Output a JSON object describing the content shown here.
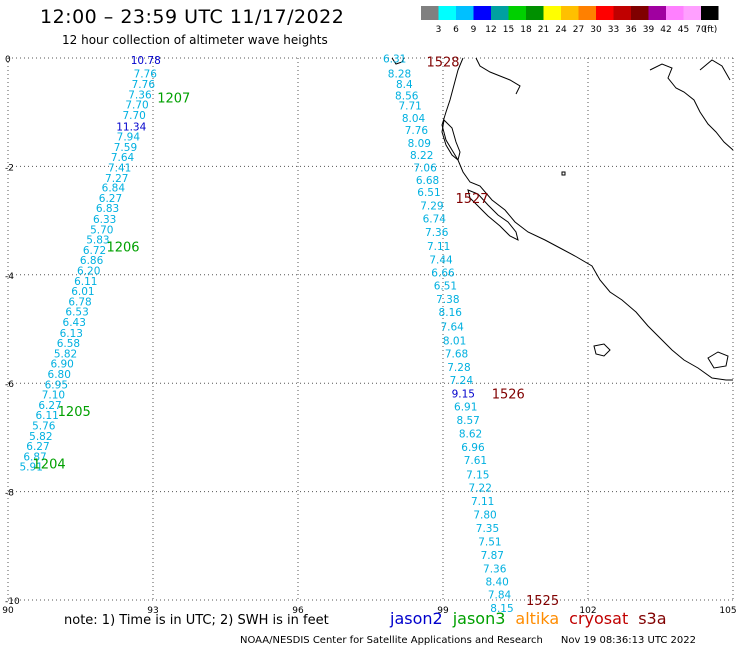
{
  "title": "12:00 – 23:59 UTC 11/17/2022",
  "subtitle": "12 hour collection of altimeter wave heights",
  "colorbar": {
    "unit": "(ft)",
    "colors": [
      "#808080",
      "#00ffff",
      "#00c0ff",
      "#0000ff",
      "#00a0a0",
      "#00d000",
      "#009000",
      "#ffff00",
      "#ffc000",
      "#ff8000",
      "#ff0000",
      "#c00000",
      "#800000",
      "#a000a0",
      "#ff80ff",
      "#ffa0ff",
      "#000000"
    ],
    "labels": [
      "3",
      "6",
      "9",
      "12",
      "15",
      "18",
      "21",
      "24",
      "27",
      "30",
      "33",
      "36",
      "39",
      "42",
      "45",
      "70"
    ]
  },
  "chart_data": {
    "type": "scatter",
    "title": "12:00 – 23:59 UTC 11/17/2022",
    "subtitle": "12 hour collection of altimeter wave heights",
    "xlim": [
      90,
      105
    ],
    "ylim": [
      -10,
      0
    ],
    "x_ticks": [
      "90",
      "93",
      "96",
      "99",
      "102",
      "105"
    ],
    "y_ticks": [
      "0",
      "-2",
      "-4",
      "-6",
      "-8",
      "-10"
    ],
    "grid": true,
    "tracks": [
      {
        "satellite": "jason3",
        "color": "#00a000",
        "points": [
          {
            "x": 92.85,
            "y": -0.04,
            "v": "10.78",
            "c": "#0000cc"
          },
          {
            "x": 92.84,
            "y": -0.29,
            "v": "7.76"
          },
          {
            "x": 92.8,
            "y": -0.48,
            "v": "7.76"
          },
          {
            "x": 92.73,
            "y": -0.67,
            "v": "7.36"
          },
          {
            "x": 92.67,
            "y": -0.86,
            "v": "7.70"
          },
          {
            "x": 92.61,
            "y": -1.05,
            "v": "7.70"
          },
          {
            "x": 92.55,
            "y": -1.26,
            "v": "11.34",
            "c": "#0000cc"
          },
          {
            "x": 92.49,
            "y": -1.45,
            "v": "7.94"
          },
          {
            "x": 92.43,
            "y": -1.64,
            "v": "7.59"
          },
          {
            "x": 92.37,
            "y": -1.83,
            "v": "7.64"
          },
          {
            "x": 92.31,
            "y": -2.02,
            "v": "7.41"
          },
          {
            "x": 92.25,
            "y": -2.21,
            "v": "7.27"
          },
          {
            "x": 92.18,
            "y": -2.39,
            "v": "6.84"
          },
          {
            "x": 92.12,
            "y": -2.58,
            "v": "6.27"
          },
          {
            "x": 92.06,
            "y": -2.77,
            "v": "6.83"
          },
          {
            "x": 92.0,
            "y": -2.97,
            "v": "6.33"
          },
          {
            "x": 91.94,
            "y": -3.16,
            "v": "5.70"
          },
          {
            "x": 91.86,
            "y": -3.35,
            "v": "5.83"
          },
          {
            "x": 91.79,
            "y": -3.54,
            "v": "6.72"
          },
          {
            "x": 91.73,
            "y": -3.73,
            "v": "6.86"
          },
          {
            "x": 91.67,
            "y": -3.92,
            "v": "6.20"
          },
          {
            "x": 91.61,
            "y": -4.11,
            "v": "6.11"
          },
          {
            "x": 91.55,
            "y": -4.3,
            "v": "6.01"
          },
          {
            "x": 91.49,
            "y": -4.49,
            "v": "6.78"
          },
          {
            "x": 91.43,
            "y": -4.68,
            "v": "6.53"
          },
          {
            "x": 91.37,
            "y": -4.87,
            "v": "6.43"
          },
          {
            "x": 91.31,
            "y": -5.07,
            "v": "6.13"
          },
          {
            "x": 91.25,
            "y": -5.26,
            "v": "6.58"
          },
          {
            "x": 91.19,
            "y": -5.45,
            "v": "5.82"
          },
          {
            "x": 91.12,
            "y": -5.64,
            "v": "6.90"
          },
          {
            "x": 91.06,
            "y": -5.83,
            "v": "6.80"
          },
          {
            "x": 91.0,
            "y": -6.02,
            "v": "6.95"
          },
          {
            "x": 90.94,
            "y": -6.21,
            "v": "7.10"
          },
          {
            "x": 90.87,
            "y": -6.4,
            "v": "6.27"
          },
          {
            "x": 90.81,
            "y": -6.59,
            "v": "6.11"
          },
          {
            "x": 90.74,
            "y": -6.78,
            "v": "5.76"
          },
          {
            "x": 90.68,
            "y": -6.97,
            "v": "5.82"
          },
          {
            "x": 90.62,
            "y": -7.16,
            "v": "6.27"
          },
          {
            "x": 90.56,
            "y": -7.35,
            "v": "6.87"
          },
          {
            "x": 90.48,
            "y": -7.54,
            "v": "5.91"
          }
        ],
        "time_labels": [
          {
            "t": "1207",
            "x": 93.43,
            "y": -0.73
          },
          {
            "t": "1206",
            "x": 92.38,
            "y": -3.48
          },
          {
            "t": "1205",
            "x": 91.37,
            "y": -6.51
          },
          {
            "t": "1204",
            "x": 90.85,
            "y": -7.48
          }
        ]
      },
      {
        "satellite": "cryosat",
        "color": "#800000",
        "points": [
          {
            "x": 98.0,
            "y": -0.01,
            "v": "6.31"
          },
          {
            "x": 98.1,
            "y": -0.29,
            "v": "8.28"
          },
          {
            "x": 98.2,
            "y": -0.48,
            "v": "8.4"
          },
          {
            "x": 98.25,
            "y": -0.69,
            "v": "8.56"
          },
          {
            "x": 98.32,
            "y": -0.88,
            "v": "7.71"
          },
          {
            "x": 98.39,
            "y": -1.11,
            "v": "8.04"
          },
          {
            "x": 98.45,
            "y": -1.33,
            "v": "7.76"
          },
          {
            "x": 98.51,
            "y": -1.57,
            "v": "8.09"
          },
          {
            "x": 98.56,
            "y": -1.79,
            "v": "8.22"
          },
          {
            "x": 98.63,
            "y": -2.02,
            "v": "7.06"
          },
          {
            "x": 98.68,
            "y": -2.25,
            "v": "6.68"
          },
          {
            "x": 98.71,
            "y": -2.47,
            "v": "6.51"
          },
          {
            "x": 98.77,
            "y": -2.72,
            "v": "7.29"
          },
          {
            "x": 98.82,
            "y": -2.96,
            "v": "6.74"
          },
          {
            "x": 98.87,
            "y": -3.21,
            "v": "7.36"
          },
          {
            "x": 98.91,
            "y": -3.47,
            "v": "7.11"
          },
          {
            "x": 98.96,
            "y": -3.72,
            "v": "7.44"
          },
          {
            "x": 99.0,
            "y": -3.96,
            "v": "6.66"
          },
          {
            "x": 99.05,
            "y": -4.2,
            "v": "6.51"
          },
          {
            "x": 99.1,
            "y": -4.45,
            "v": "7.38"
          },
          {
            "x": 99.15,
            "y": -4.69,
            "v": "8.16"
          },
          {
            "x": 99.19,
            "y": -4.95,
            "v": "7.64"
          },
          {
            "x": 99.24,
            "y": -5.21,
            "v": "8.01"
          },
          {
            "x": 99.28,
            "y": -5.45,
            "v": "7.68"
          },
          {
            "x": 99.33,
            "y": -5.7,
            "v": "7.28"
          },
          {
            "x": 99.38,
            "y": -5.94,
            "v": "7.24"
          },
          {
            "x": 99.42,
            "y": -6.19,
            "v": "9.15",
            "c": "#0000cc"
          },
          {
            "x": 99.47,
            "y": -6.43,
            "v": "6.91"
          },
          {
            "x": 99.52,
            "y": -6.68,
            "v": "8.57"
          },
          {
            "x": 99.57,
            "y": -6.93,
            "v": "8.62"
          },
          {
            "x": 99.62,
            "y": -7.18,
            "v": "6.96"
          },
          {
            "x": 99.67,
            "y": -7.42,
            "v": "7.61"
          },
          {
            "x": 99.72,
            "y": -7.68,
            "v": "7.15"
          },
          {
            "x": 99.77,
            "y": -7.92,
            "v": "7.22"
          },
          {
            "x": 99.82,
            "y": -8.17,
            "v": "7.11"
          },
          {
            "x": 99.87,
            "y": -8.42,
            "v": "7.80"
          },
          {
            "x": 99.92,
            "y": -8.67,
            "v": "7.35"
          },
          {
            "x": 99.97,
            "y": -8.92,
            "v": "7.51"
          },
          {
            "x": 100.02,
            "y": -9.17,
            "v": "7.87"
          },
          {
            "x": 100.07,
            "y": -9.42,
            "v": "7.36"
          },
          {
            "x": 100.12,
            "y": -9.66,
            "v": "8.40"
          },
          {
            "x": 100.17,
            "y": -9.9,
            "v": "7.84"
          },
          {
            "x": 100.22,
            "y": -10.15,
            "v": "8.15"
          }
        ],
        "time_labels": [
          {
            "t": "1528",
            "x": 99.0,
            "y": -0.06
          },
          {
            "t": "1527",
            "x": 99.6,
            "y": -2.58
          },
          {
            "t": "1526",
            "x": 100.35,
            "y": -6.19
          },
          {
            "t": "1525",
            "x": 101.06,
            "y": -10.0
          }
        ]
      }
    ]
  },
  "legend": [
    {
      "name": "jason2",
      "color": "#0000cc"
    },
    {
      "name": "jason3",
      "color": "#00a000"
    },
    {
      "name": "altika",
      "color": "#ff8c00"
    },
    {
      "name": "cryosat",
      "color": "#c00000"
    },
    {
      "name": "s3a",
      "color": "#800000"
    }
  ],
  "note": "note:  1) Time is in UTC; 2) SWH is in feet",
  "credit": "NOAA/NESDIS Center for Satellite Applications and Research",
  "timestamp": "Nov 19 08:36:13 UTC 2022"
}
